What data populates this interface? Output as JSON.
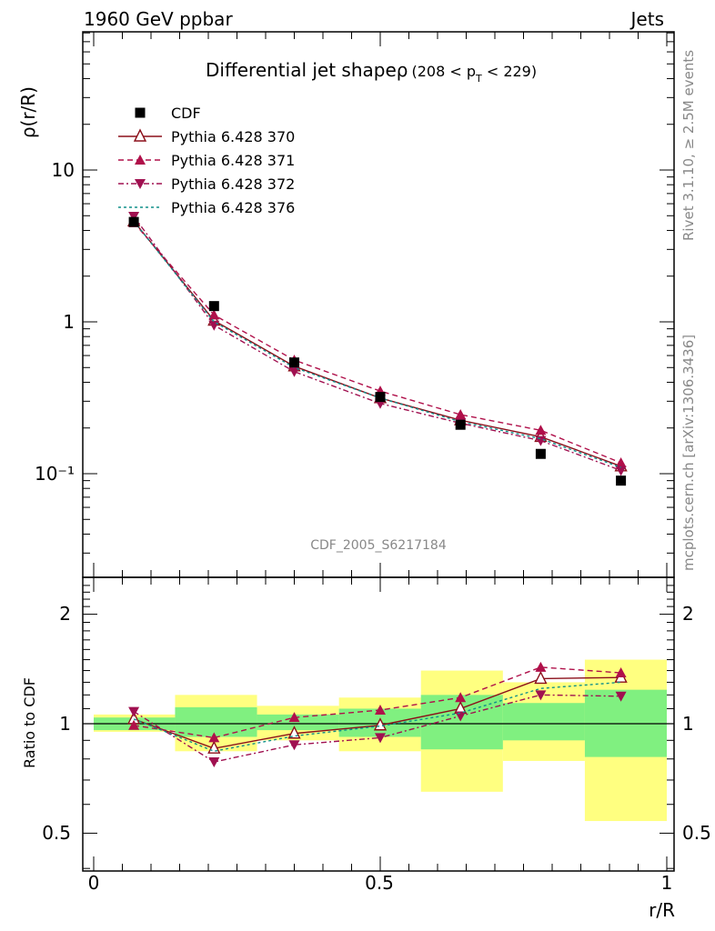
{
  "header": {
    "left": "1960 GeV ppbar",
    "right": "Jets"
  },
  "side_text": {
    "rivet": "Rivet 3.1.10, ≥ 2.5M events",
    "mcplots": "mcplots.cern.ch [arXiv:1306.3436]"
  },
  "watermark": "CDF_2005_S6217184",
  "title": {
    "main": "Differential jet shapeρ",
    "sub_pre": "(208 < p",
    "sub_sub": "T",
    "sub_post": " < 229)"
  },
  "colors": {
    "cdf": "#000000",
    "p370": "#8b0f1a",
    "p371": "#b0104a",
    "p372": "#a01050",
    "p376": "#10908a",
    "band_green": "#80f080",
    "band_yellow": "#ffff80"
  },
  "chart_data": [
    {
      "type": "line",
      "panel": "main",
      "ylabel": "ρ(r/R)",
      "yscale": "log",
      "ylim": [
        0.025,
        60
      ],
      "xlim": [
        -0.02,
        1.0
      ],
      "yticks": [
        "10⁻¹",
        "1",
        "10"
      ],
      "legend_position": "top-left",
      "x": [
        0.07,
        0.21,
        0.35,
        0.5,
        0.64,
        0.78,
        0.92
      ],
      "series": [
        {
          "name": "CDF",
          "marker": "square",
          "values": [
            4.55,
            1.27,
            0.54,
            0.32,
            0.21,
            0.135,
            0.09
          ],
          "yerr": [
            0.1,
            0.03,
            0.012,
            0.008,
            0.005,
            0.004,
            0.003
          ]
        },
        {
          "name": "Pythia 6.428 370",
          "marker": "open-triangle-up",
          "line": "solid",
          "values": [
            4.6,
            1.02,
            0.51,
            0.315,
            0.225,
            0.175,
            0.112
          ]
        },
        {
          "name": "Pythia 6.428 371",
          "marker": "triangle-up",
          "line": "dashed",
          "values": [
            4.5,
            1.11,
            0.56,
            0.35,
            0.245,
            0.193,
            0.118
          ]
        },
        {
          "name": "Pythia 6.428 372",
          "marker": "triangle-down",
          "line": "dashdot",
          "values": [
            4.95,
            0.95,
            0.47,
            0.29,
            0.215,
            0.165,
            0.105
          ]
        },
        {
          "name": "Pythia 6.428 376",
          "marker": "none",
          "line": "dotted",
          "values": [
            4.6,
            1.0,
            0.5,
            0.315,
            0.22,
            0.17,
            0.11
          ]
        }
      ]
    },
    {
      "type": "line",
      "panel": "ratio",
      "xlabel": "r/R",
      "ylabel": "Ratio to CDF",
      "yscale": "log",
      "ylim": [
        0.4,
        2.5
      ],
      "xlim": [
        -0.02,
        1.0
      ],
      "yticks": [
        "0.5",
        "1",
        "2"
      ],
      "xticks": [
        "0",
        "0.5",
        "1"
      ],
      "x": [
        0.07,
        0.21,
        0.35,
        0.5,
        0.64,
        0.78,
        0.92
      ],
      "bands": {
        "edges": [
          0.0,
          0.142,
          0.285,
          0.428,
          0.571,
          0.714,
          0.857,
          1.0
        ],
        "yellow": [
          [
            0.95,
            1.06
          ],
          [
            0.84,
            1.2
          ],
          [
            0.9,
            1.12
          ],
          [
            0.84,
            1.18
          ],
          [
            0.65,
            1.4
          ],
          [
            0.79,
            1.3
          ],
          [
            0.54,
            1.5
          ]
        ],
        "green": [
          [
            0.96,
            1.04
          ],
          [
            0.92,
            1.11
          ],
          [
            0.96,
            1.06
          ],
          [
            0.92,
            1.1
          ],
          [
            0.85,
            1.2
          ],
          [
            0.9,
            1.14
          ],
          [
            0.81,
            1.24
          ]
        ]
      },
      "series": [
        {
          "name": "Pythia 6.428 370",
          "marker": "open-triangle-up",
          "line": "solid",
          "values": [
            1.03,
            0.855,
            0.94,
            0.99,
            1.1,
            1.33,
            1.34
          ]
        },
        {
          "name": "Pythia 6.428 371",
          "marker": "triangle-up",
          "line": "dashed",
          "values": [
            0.99,
            0.915,
            1.04,
            1.09,
            1.18,
            1.43,
            1.38
          ]
        },
        {
          "name": "Pythia 6.428 372",
          "marker": "triangle-down",
          "line": "dashdot",
          "values": [
            1.08,
            0.785,
            0.875,
            0.915,
            1.05,
            1.2,
            1.19
          ]
        },
        {
          "name": "Pythia 6.428 376",
          "marker": "none",
          "line": "dotted",
          "values": [
            1.03,
            0.84,
            0.925,
            0.985,
            1.07,
            1.25,
            1.3
          ]
        }
      ]
    }
  ]
}
